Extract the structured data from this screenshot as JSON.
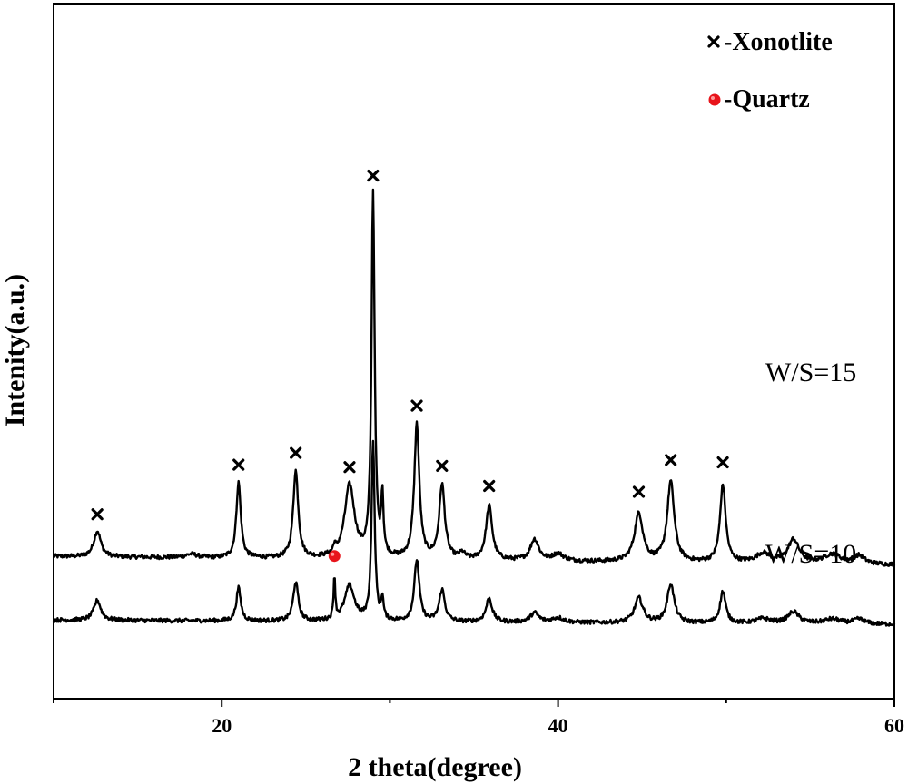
{
  "chart_data": {
    "type": "line",
    "xlabel": "2 theta(degree)",
    "ylabel": "Intenity(a.u.)",
    "xlim": [
      10,
      60
    ],
    "xticks": [
      "20",
      "40",
      "60"
    ],
    "grid": false,
    "legend": {
      "position": "top-right",
      "entries": [
        {
          "marker": "x-mark",
          "label": "-Xonotlite",
          "color": "#000000"
        },
        {
          "marker": "dot",
          "label": "-Quartz",
          "color": "#e8141b"
        }
      ]
    },
    "series": [
      {
        "name": "W/S=15",
        "baseline": 0.54,
        "peaks": [
          {
            "x": 12.6,
            "h": 0.22,
            "w": 0.25
          },
          {
            "x": 18.2,
            "h": 0.03,
            "w": 0.4
          },
          {
            "x": 21.0,
            "h": 0.64,
            "w": 0.16
          },
          {
            "x": 24.4,
            "h": 0.74,
            "w": 0.18
          },
          {
            "x": 26.7,
            "h": 0.06,
            "w": 0.08
          },
          {
            "x": 27.6,
            "h": 0.62,
            "w": 0.35
          },
          {
            "x": 29.0,
            "h": 3.09,
            "w": 0.11
          },
          {
            "x": 29.55,
            "h": 0.5,
            "w": 0.08
          },
          {
            "x": 31.6,
            "h": 1.14,
            "w": 0.18
          },
          {
            "x": 33.1,
            "h": 0.63,
            "w": 0.2
          },
          {
            "x": 34.3,
            "h": 0.05,
            "w": 0.2
          },
          {
            "x": 35.9,
            "h": 0.46,
            "w": 0.22
          },
          {
            "x": 38.6,
            "h": 0.18,
            "w": 0.3
          },
          {
            "x": 40.0,
            "h": 0.06,
            "w": 0.4
          },
          {
            "x": 44.8,
            "h": 0.41,
            "w": 0.3
          },
          {
            "x": 46.7,
            "h": 0.68,
            "w": 0.25
          },
          {
            "x": 49.8,
            "h": 0.66,
            "w": 0.2
          },
          {
            "x": 52.2,
            "h": 0.08,
            "w": 0.5
          },
          {
            "x": 54.0,
            "h": 0.2,
            "w": 0.4
          },
          {
            "x": 56.3,
            "h": 0.08,
            "w": 0.6
          },
          {
            "x": 57.9,
            "h": 0.07,
            "w": 0.4
          }
        ],
        "peak_markers": [
          {
            "phase": "Xonotlite",
            "x": 12.6
          },
          {
            "phase": "Xonotlite",
            "x": 21.0
          },
          {
            "phase": "Xonotlite",
            "x": 24.4
          },
          {
            "phase": "Xonotlite",
            "x": 27.6
          },
          {
            "phase": "Xonotlite",
            "x": 29.0
          },
          {
            "phase": "Xonotlite",
            "x": 31.6
          },
          {
            "phase": "Xonotlite",
            "x": 33.1
          },
          {
            "phase": "Xonotlite",
            "x": 35.9
          },
          {
            "phase": "Xonotlite",
            "x": 44.8
          },
          {
            "phase": "Xonotlite",
            "x": 46.7
          },
          {
            "phase": "Xonotlite",
            "x": 49.8
          }
        ]
      },
      {
        "name": "W/S=10",
        "baseline": 0.0,
        "peaks": [
          {
            "x": 12.6,
            "h": 0.17,
            "w": 0.25
          },
          {
            "x": 21.0,
            "h": 0.28,
            "w": 0.16
          },
          {
            "x": 24.4,
            "h": 0.33,
            "w": 0.18
          },
          {
            "x": 26.7,
            "h": 0.36,
            "w": 0.06
          },
          {
            "x": 27.6,
            "h": 0.3,
            "w": 0.35
          },
          {
            "x": 29.0,
            "h": 1.52,
            "w": 0.11
          },
          {
            "x": 29.55,
            "h": 0.18,
            "w": 0.08
          },
          {
            "x": 31.6,
            "h": 0.52,
            "w": 0.18
          },
          {
            "x": 33.1,
            "h": 0.27,
            "w": 0.2
          },
          {
            "x": 35.9,
            "h": 0.2,
            "w": 0.22
          },
          {
            "x": 38.6,
            "h": 0.08,
            "w": 0.3
          },
          {
            "x": 40.0,
            "h": 0.04,
            "w": 0.4
          },
          {
            "x": 44.8,
            "h": 0.21,
            "w": 0.3
          },
          {
            "x": 46.7,
            "h": 0.33,
            "w": 0.25
          },
          {
            "x": 49.8,
            "h": 0.27,
            "w": 0.2
          },
          {
            "x": 52.2,
            "h": 0.04,
            "w": 0.5
          },
          {
            "x": 54.0,
            "h": 0.1,
            "w": 0.4
          },
          {
            "x": 56.3,
            "h": 0.04,
            "w": 0.6
          },
          {
            "x": 57.9,
            "h": 0.04,
            "w": 0.4
          }
        ],
        "peak_markers": [
          {
            "phase": "Quartz",
            "x": 26.7
          }
        ]
      }
    ]
  }
}
